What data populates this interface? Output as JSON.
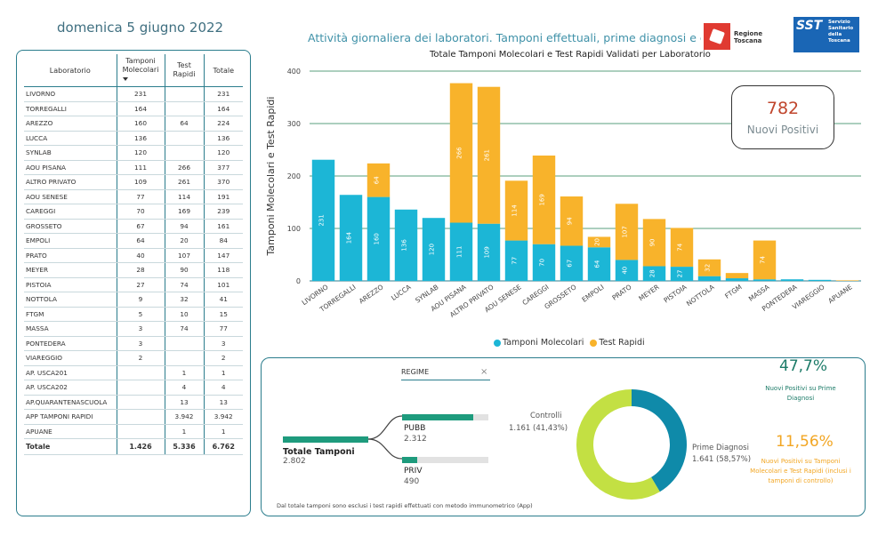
{
  "header": {
    "date": "domenica 5 giugno 2022",
    "title": "Attività giornaliera dei laboratori. Tamponi effettuali, prime diagnosi e controlli",
    "logo_rt_text": "Regione Toscana",
    "logo_sst_mark": "SST",
    "logo_sst_text": "Servizio Sanitario della Toscana"
  },
  "table": {
    "headers": {
      "lab": "Laboratorio",
      "molecular": "Tamponi Molecolari",
      "rapid": "Test Rapidi",
      "total": "Totale"
    },
    "rows": [
      {
        "name": "LIVORNO",
        "molecular": "231",
        "rapid": "",
        "total": "231"
      },
      {
        "name": "TORREGALLI",
        "molecular": "164",
        "rapid": "",
        "total": "164"
      },
      {
        "name": "AREZZO",
        "molecular": "160",
        "rapid": "64",
        "total": "224"
      },
      {
        "name": "LUCCA",
        "molecular": "136",
        "rapid": "",
        "total": "136"
      },
      {
        "name": "SYNLAB",
        "molecular": "120",
        "rapid": "",
        "total": "120"
      },
      {
        "name": "AOU PISANA",
        "molecular": "111",
        "rapid": "266",
        "total": "377"
      },
      {
        "name": "ALTRO PRIVATO",
        "molecular": "109",
        "rapid": "261",
        "total": "370"
      },
      {
        "name": "AOU SENESE",
        "molecular": "77",
        "rapid": "114",
        "total": "191"
      },
      {
        "name": "CAREGGI",
        "molecular": "70",
        "rapid": "169",
        "total": "239"
      },
      {
        "name": "GROSSETO",
        "molecular": "67",
        "rapid": "94",
        "total": "161"
      },
      {
        "name": "EMPOLI",
        "molecular": "64",
        "rapid": "20",
        "total": "84"
      },
      {
        "name": "PRATO",
        "molecular": "40",
        "rapid": "107",
        "total": "147"
      },
      {
        "name": "MEYER",
        "molecular": "28",
        "rapid": "90",
        "total": "118"
      },
      {
        "name": "PISTOIA",
        "molecular": "27",
        "rapid": "74",
        "total": "101"
      },
      {
        "name": "NOTTOLA",
        "molecular": "9",
        "rapid": "32",
        "total": "41"
      },
      {
        "name": "FTGM",
        "molecular": "5",
        "rapid": "10",
        "total": "15"
      },
      {
        "name": "MASSA",
        "molecular": "3",
        "rapid": "74",
        "total": "77"
      },
      {
        "name": "PONTEDERA",
        "molecular": "3",
        "rapid": "",
        "total": "3"
      },
      {
        "name": "VIAREGGIO",
        "molecular": "2",
        "rapid": "",
        "total": "2"
      },
      {
        "name": "AP. USCA201",
        "molecular": "",
        "rapid": "1",
        "total": "1"
      },
      {
        "name": "AP. USCA202",
        "molecular": "",
        "rapid": "4",
        "total": "4"
      },
      {
        "name": "AP.QUARANTENASCUOLA",
        "molecular": "",
        "rapid": "13",
        "total": "13"
      },
      {
        "name": "APP TAMPONI RAPIDI",
        "molecular": "",
        "rapid": "3.942",
        "total": "3.942"
      },
      {
        "name": "APUANE",
        "molecular": "",
        "rapid": "1",
        "total": "1"
      }
    ],
    "total_row": {
      "name": "Totale",
      "molecular": "1.426",
      "rapid": "5.336",
      "total": "6.762"
    }
  },
  "chart_data": {
    "type": "bar",
    "stacked": true,
    "title": "Totale Tamponi Molecolari e Test Rapidi Validati per Laboratorio",
    "ylabel": "Tamponi Molecolari e Test Rapidi",
    "ylim": [
      0,
      400
    ],
    "yticks": [
      0,
      100,
      200,
      300,
      400
    ],
    "categories": [
      "LIVORNO",
      "TORREGALLI",
      "AREZZO",
      "LUCCA",
      "SYNLAB",
      "AOU PISANA",
      "ALTRO PRIVATO",
      "AOU SENESE",
      "CAREGGI",
      "GROSSETO",
      "EMPOLI",
      "PRATO",
      "MEYER",
      "PISTOIA",
      "NOTTOLA",
      "FTGM",
      "MASSA",
      "PONTEDERA",
      "VIAREGGIO",
      "APUANE"
    ],
    "series": [
      {
        "name": "Tamponi Molecolari",
        "color": "#1cb6d6",
        "values": [
          231,
          164,
          160,
          136,
          120,
          111,
          109,
          77,
          70,
          67,
          64,
          40,
          28,
          27,
          9,
          5,
          3,
          3,
          2,
          0
        ]
      },
      {
        "name": "Test Rapidi",
        "color": "#f8b32b",
        "values": [
          0,
          0,
          64,
          0,
          0,
          266,
          261,
          114,
          169,
          94,
          20,
          107,
          90,
          74,
          32,
          10,
          74,
          0,
          0,
          1
        ]
      }
    ],
    "legend_position": "bottom",
    "grid": true
  },
  "kpi_new_positive": {
    "value": "782",
    "label": "Nuovi Positivi"
  },
  "decomposition": {
    "filter_label": "REGIME",
    "root": {
      "label": "Totale Tamponi",
      "value": "2.802"
    },
    "branches": [
      {
        "label": "PUBB",
        "value": "2.312",
        "fraction": 0.825
      },
      {
        "label": "PRIV",
        "value": "490",
        "fraction": 0.175
      }
    ],
    "footnote": "Dal totale tamponi sono esclusi i test rapidi effettuati con metodo immunometrico (App)"
  },
  "donut": {
    "slices": [
      {
        "label": "Controlli",
        "value": "1.161 (41,43%)",
        "fraction": 0.4143,
        "color": "#0f8aa9"
      },
      {
        "label": "Prime Diagnosi",
        "value": "1.641 (58,57%)",
        "fraction": 0.5857,
        "color": "#c3e043"
      }
    ]
  },
  "kpi_first_diag": {
    "value": "47,7%",
    "label": "Nuovi Positivi su Prime Diagnosi"
  },
  "kpi_all_tests": {
    "value": "11,56%",
    "label": "Nuovi Positivi su Tamponi Molecolari e Test Rapidi (inclusi i tamponi di controllo)"
  }
}
